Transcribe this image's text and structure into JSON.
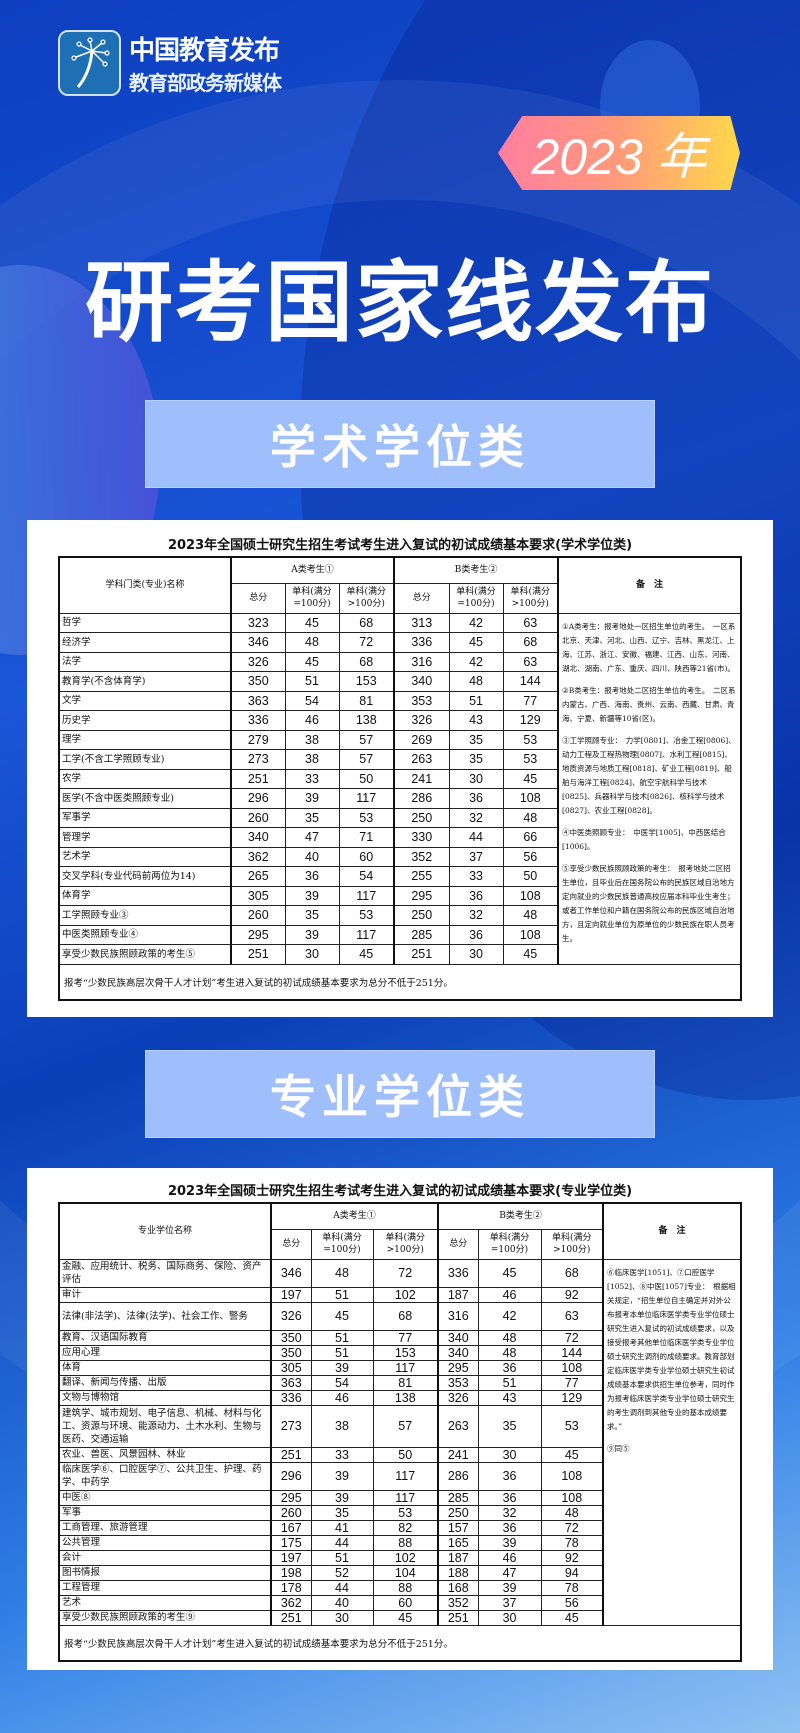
{
  "header": {
    "logo_line1": "中国教育发布",
    "logo_line2": "教育部政务新媒体",
    "year_badge": "2023 年",
    "title": "研考国家线发布"
  },
  "colors": {
    "background": "#1550d0",
    "section_box": "#9fbefc",
    "badge_start": "#ff7ea0",
    "badge_end": "#ffd84a"
  },
  "academic": {
    "section_label": "学术学位类",
    "table_title": "2023年全国硕士研究生招生考试考生进入复试的初试成绩基本要求(学术学位类)",
    "col_name": "学科门类(专业)名称",
    "col_a": "A类考生①",
    "col_b": "B类考生②",
    "col_total": "总分",
    "col_s100": "单科(满分=100分)",
    "col_sgt100": "单科(满分>100分)",
    "col_notes": "备　注",
    "rows": [
      [
        "哲学",
        323,
        45,
        68,
        313,
        42,
        63
      ],
      [
        "经济学",
        346,
        48,
        72,
        336,
        45,
        68
      ],
      [
        "法学",
        326,
        45,
        68,
        316,
        42,
        63
      ],
      [
        "教育学(不含体育学)",
        350,
        51,
        153,
        340,
        48,
        144
      ],
      [
        "文学",
        363,
        54,
        81,
        353,
        51,
        77
      ],
      [
        "历史学",
        336,
        46,
        138,
        326,
        43,
        129
      ],
      [
        "理学",
        279,
        38,
        57,
        269,
        35,
        53
      ],
      [
        "工学(不含工学照顾专业)",
        273,
        38,
        57,
        263,
        35,
        53
      ],
      [
        "农学",
        251,
        33,
        50,
        241,
        30,
        45
      ],
      [
        "医学(不含中医类照顾专业)",
        296,
        39,
        117,
        286,
        36,
        108
      ],
      [
        "军事学",
        260,
        35,
        53,
        250,
        32,
        48
      ],
      [
        "管理学",
        340,
        47,
        71,
        330,
        44,
        66
      ],
      [
        "艺术学",
        362,
        40,
        60,
        352,
        37,
        56
      ],
      [
        "交叉学科(专业代码前两位为14)",
        265,
        36,
        54,
        255,
        33,
        50
      ],
      [
        "体育学",
        305,
        39,
        117,
        295,
        36,
        108
      ],
      [
        "工学照顾专业③",
        260,
        35,
        53,
        250,
        32,
        48
      ],
      [
        "中医类照顾专业④",
        295,
        39,
        117,
        285,
        36,
        108
      ],
      [
        "享受少数民族照顾政策的考生⑤",
        251,
        30,
        45,
        251,
        30,
        45
      ]
    ],
    "notes": [
      "①A类考生：报考地处一区招生单位的考生。　一区系北京、天津、河北、山西、辽宁、吉林、黑龙江、上海、江苏、浙江、安徽、福建、江西、山东、河南、湖北、湖南、广东、重庆、四川、陕西等21省(市)。",
      "②B类考生：报考地处二区招生单位的考生。　二区系内蒙古、广西、海南、贵州、云南、西藏、甘肃、青海、宁夏、新疆等10省(区)。",
      "③工学照顾专业：　力学[0801]、冶金工程[0806]、动力工程及工程热物理[0807]、水利工程[0815]、地质资源与地质工程[0818]、矿业工程[0819]、船舶与海洋工程[0824]、航空宇航科学与技术[0825]、兵器科学与技术[0826]、核科学与技术[0827]、农业工程[0828]。",
      "④中医类照顾专业：　中医学[1005]、中西医结合[1006]。",
      "⑤享受少数民族照顾政策的考生：　报考地处二区招生单位，且毕业后在国务院公布的民族区域自治地方定向就业的少数民族普通高校应届本科毕业生考生；或者工作单位和户籍在国务院公布的民族区域自治地方，且定向就业单位为原单位的少数民族在职人员考生。"
    ],
    "footer": "报考“少数民族高层次骨干人才计划”考生进入复试的初试成绩基本要求为总分不低于251分。"
  },
  "professional": {
    "section_label": "专业学位类",
    "table_title": "2023年全国硕士研究生招生考试考生进入复试的初试成绩基本要求(专业学位类)",
    "col_name": "专业学位名称",
    "col_a": "A类考生①",
    "col_b": "B类考生②",
    "col_total": "总分",
    "col_s100": "单科(满分=100分)",
    "col_sgt100": "单科(满分>100分)",
    "col_notes": "备　注",
    "rows": [
      [
        "金融、应用统计、税务、国际商务、保险、资产评估",
        346,
        48,
        72,
        336,
        45,
        68
      ],
      [
        "审计",
        197,
        51,
        102,
        187,
        46,
        92
      ],
      [
        "法律(非法学)、法律(法学)、社会工作、警务",
        326,
        45,
        68,
        316,
        42,
        63
      ],
      [
        "教育、汉语国际教育",
        350,
        51,
        77,
        340,
        48,
        72
      ],
      [
        "应用心理",
        350,
        51,
        153,
        340,
        48,
        144
      ],
      [
        "体育",
        305,
        39,
        117,
        295,
        36,
        108
      ],
      [
        "翻译、新闻与传播、出版",
        363,
        54,
        81,
        353,
        51,
        77
      ],
      [
        "文物与博物馆",
        336,
        46,
        138,
        326,
        43,
        129
      ],
      [
        "建筑学、城市规划、电子信息、机械、材料与化工、资源与环境、能源动力、土木水利、生物与医药、交通运输",
        273,
        38,
        57,
        263,
        35,
        53
      ],
      [
        "农业、兽医、风景园林、林业",
        251,
        33,
        50,
        241,
        30,
        45
      ],
      [
        "临床医学⑥、口腔医学⑦、公共卫生、护理、药学、中药学",
        296,
        39,
        117,
        286,
        36,
        108
      ],
      [
        "中医⑧",
        295,
        39,
        117,
        285,
        36,
        108
      ],
      [
        "军事",
        260,
        35,
        53,
        250,
        32,
        48
      ],
      [
        "工商管理、旅游管理",
        167,
        41,
        82,
        157,
        36,
        72
      ],
      [
        "公共管理",
        175,
        44,
        88,
        165,
        39,
        78
      ],
      [
        "会计",
        197,
        51,
        102,
        187,
        46,
        92
      ],
      [
        "图书情报",
        198,
        52,
        104,
        188,
        47,
        94
      ],
      [
        "工程管理",
        178,
        44,
        88,
        168,
        39,
        78
      ],
      [
        "艺术",
        362,
        40,
        60,
        352,
        37,
        56
      ],
      [
        "享受少数民族照顾政策的考生⑨",
        251,
        30,
        45,
        251,
        30,
        45
      ]
    ],
    "notes": [
      "⑥临床医学[1051]、⑦口腔医学[1052]、⑧中医[1057]专业：　根据相关规定，“招生单位自主确定并对外公布报考本单位临床医学类专业学位硕士研究生进入复试的初试成绩要求，以及接受报考其他单位临床医学类专业学位硕士研究生调剂的成绩要求。教育部划定临床医学类专业学位硕士研究生初试成绩基本要求供招生单位参考，同时作为报考临床医学类专业学位硕士研究生的考生调剂到其他专业的基本成绩要求。”",
      "⑨同⑤"
    ],
    "footer": "报考“少数民族高层次骨干人才计划”考生进入复试的初试成绩基本要求为总分不低于251分。"
  }
}
